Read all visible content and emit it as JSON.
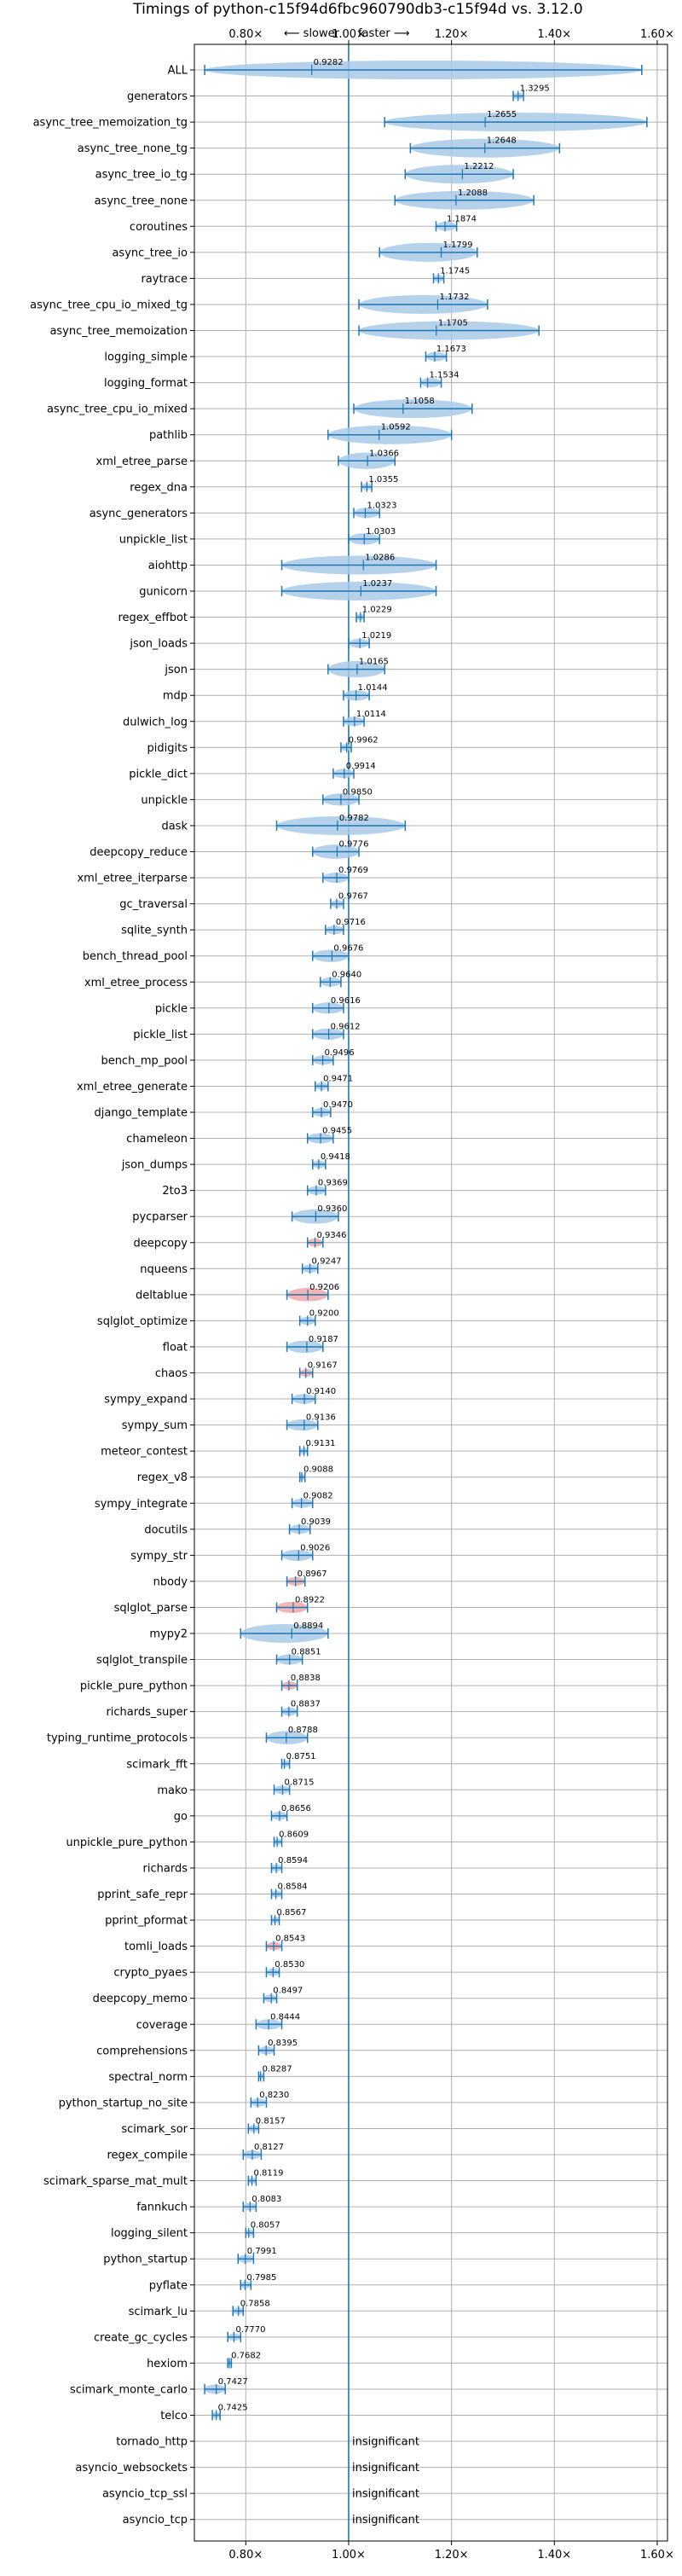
{
  "chart_data": {
    "type": "violin",
    "title": "Timings of python-c15f94d6fbc960790db3-c15f94d vs. 3.12.0",
    "direction_labels": {
      "slower": "⟵ slower",
      "faster": "faster ⟶"
    },
    "xlim": [
      0.7,
      1.62
    ],
    "x_ticks": [
      0.8,
      1.0,
      1.2,
      1.4,
      1.6
    ],
    "x_tick_labels": [
      "0.80×",
      "1.00×",
      "1.20×",
      "1.40×",
      "1.60×"
    ],
    "baseline": 1.0,
    "grid": true,
    "colors": {
      "violin": "#a9c9e6",
      "violin_highlight": "#f0a8a8",
      "line": "#1f77b4",
      "grid": "#b0b0b0"
    },
    "insignificant_label": "insignificant",
    "benchmarks": [
      {
        "name": "ALL",
        "value": "0.9282",
        "mean": 0.9282,
        "lo": 0.72,
        "hi": 1.57
      },
      {
        "name": "generators",
        "value": "1.3295",
        "mean": 1.3295,
        "lo": 1.32,
        "hi": 1.34
      },
      {
        "name": "async_tree_memoization_tg",
        "value": "1.2655",
        "mean": 1.2655,
        "lo": 1.07,
        "hi": 1.58
      },
      {
        "name": "async_tree_none_tg",
        "value": "1.2648",
        "mean": 1.2648,
        "lo": 1.12,
        "hi": 1.41
      },
      {
        "name": "async_tree_io_tg",
        "value": "1.2212",
        "mean": 1.2212,
        "lo": 1.11,
        "hi": 1.32
      },
      {
        "name": "async_tree_none",
        "value": "1.2088",
        "mean": 1.2088,
        "lo": 1.09,
        "hi": 1.36
      },
      {
        "name": "coroutines",
        "value": "1.1874",
        "mean": 1.1874,
        "lo": 1.17,
        "hi": 1.21
      },
      {
        "name": "async_tree_io",
        "value": "1.1799",
        "mean": 1.1799,
        "lo": 1.06,
        "hi": 1.25
      },
      {
        "name": "raytrace",
        "value": "1.1745",
        "mean": 1.1745,
        "lo": 1.165,
        "hi": 1.185
      },
      {
        "name": "async_tree_cpu_io_mixed_tg",
        "value": "1.1732",
        "mean": 1.1732,
        "lo": 1.02,
        "hi": 1.27
      },
      {
        "name": "async_tree_memoization",
        "value": "1.1705",
        "mean": 1.1705,
        "lo": 1.02,
        "hi": 1.37
      },
      {
        "name": "logging_simple",
        "value": "1.1673",
        "mean": 1.1673,
        "lo": 1.15,
        "hi": 1.19
      },
      {
        "name": "logging_format",
        "value": "1.1534",
        "mean": 1.1534,
        "lo": 1.14,
        "hi": 1.18
      },
      {
        "name": "async_tree_cpu_io_mixed",
        "value": "1.1058",
        "mean": 1.1058,
        "lo": 1.01,
        "hi": 1.24
      },
      {
        "name": "pathlib",
        "value": "1.0592",
        "mean": 1.0592,
        "lo": 0.96,
        "hi": 1.2
      },
      {
        "name": "xml_etree_parse",
        "value": "1.0366",
        "mean": 1.0366,
        "lo": 0.98,
        "hi": 1.09
      },
      {
        "name": "regex_dna",
        "value": "1.0355",
        "mean": 1.0355,
        "lo": 1.025,
        "hi": 1.045
      },
      {
        "name": "async_generators",
        "value": "1.0323",
        "mean": 1.0323,
        "lo": 1.01,
        "hi": 1.06
      },
      {
        "name": "unpickle_list",
        "value": "1.0303",
        "mean": 1.0303,
        "lo": 1.0,
        "hi": 1.06
      },
      {
        "name": "aiohttp",
        "value": "1.0286",
        "mean": 1.0286,
        "lo": 0.87,
        "hi": 1.17
      },
      {
        "name": "gunicorn",
        "value": "1.0237",
        "mean": 1.0237,
        "lo": 0.87,
        "hi": 1.17
      },
      {
        "name": "regex_effbot",
        "value": "1.0229",
        "mean": 1.0229,
        "lo": 1.015,
        "hi": 1.03
      },
      {
        "name": "json_loads",
        "value": "1.0219",
        "mean": 1.0219,
        "lo": 1.0,
        "hi": 1.04
      },
      {
        "name": "json",
        "value": "1.0165",
        "mean": 1.0165,
        "lo": 0.96,
        "hi": 1.07
      },
      {
        "name": "mdp",
        "value": "1.0144",
        "mean": 1.0144,
        "lo": 0.99,
        "hi": 1.04
      },
      {
        "name": "dulwich_log",
        "value": "1.0114",
        "mean": 1.0114,
        "lo": 0.99,
        "hi": 1.03
      },
      {
        "name": "pidigits",
        "value": "0.9962",
        "mean": 0.9962,
        "lo": 0.985,
        "hi": 1.005
      },
      {
        "name": "pickle_dict",
        "value": "0.9914",
        "mean": 0.9914,
        "lo": 0.97,
        "hi": 1.01
      },
      {
        "name": "unpickle",
        "value": "0.9850",
        "mean": 0.985,
        "lo": 0.95,
        "hi": 1.02
      },
      {
        "name": "dask",
        "value": "0.9782",
        "mean": 0.9782,
        "lo": 0.86,
        "hi": 1.11
      },
      {
        "name": "deepcopy_reduce",
        "value": "0.9776",
        "mean": 0.9776,
        "lo": 0.93,
        "hi": 1.02
      },
      {
        "name": "xml_etree_iterparse",
        "value": "0.9769",
        "mean": 0.9769,
        "lo": 0.95,
        "hi": 1.0
      },
      {
        "name": "gc_traversal",
        "value": "0.9767",
        "mean": 0.9767,
        "lo": 0.965,
        "hi": 0.99
      },
      {
        "name": "sqlite_synth",
        "value": "0.9716",
        "mean": 0.9716,
        "lo": 0.955,
        "hi": 0.99
      },
      {
        "name": "bench_thread_pool",
        "value": "0.9676",
        "mean": 0.9676,
        "lo": 0.93,
        "hi": 1.0
      },
      {
        "name": "xml_etree_process",
        "value": "0.9640",
        "mean": 0.964,
        "lo": 0.945,
        "hi": 0.985
      },
      {
        "name": "pickle",
        "value": "0.9616",
        "mean": 0.9616,
        "lo": 0.93,
        "hi": 0.99
      },
      {
        "name": "pickle_list",
        "value": "0.9612",
        "mean": 0.9612,
        "lo": 0.93,
        "hi": 0.99
      },
      {
        "name": "bench_mp_pool",
        "value": "0.9496",
        "mean": 0.9496,
        "lo": 0.93,
        "hi": 0.97
      },
      {
        "name": "xml_etree_generate",
        "value": "0.9471",
        "mean": 0.9471,
        "lo": 0.935,
        "hi": 0.96
      },
      {
        "name": "django_template",
        "value": "0.9470",
        "mean": 0.947,
        "lo": 0.93,
        "hi": 0.965
      },
      {
        "name": "chameleon",
        "value": "0.9455",
        "mean": 0.9455,
        "lo": 0.92,
        "hi": 0.97
      },
      {
        "name": "json_dumps",
        "value": "0.9418",
        "mean": 0.9418,
        "lo": 0.93,
        "hi": 0.955
      },
      {
        "name": "2to3",
        "value": "0.9369",
        "mean": 0.9369,
        "lo": 0.92,
        "hi": 0.955
      },
      {
        "name": "pycparser",
        "value": "0.9360",
        "mean": 0.936,
        "lo": 0.89,
        "hi": 0.98
      },
      {
        "name": "deepcopy",
        "value": "0.9346",
        "mean": 0.9346,
        "lo": 0.92,
        "hi": 0.95,
        "highlight": true
      },
      {
        "name": "nqueens",
        "value": "0.9247",
        "mean": 0.9247,
        "lo": 0.91,
        "hi": 0.94
      },
      {
        "name": "deltablue",
        "value": "0.9206",
        "mean": 0.9206,
        "lo": 0.88,
        "hi": 0.96,
        "highlight": true
      },
      {
        "name": "sqlglot_optimize",
        "value": "0.9200",
        "mean": 0.92,
        "lo": 0.905,
        "hi": 0.935
      },
      {
        "name": "float",
        "value": "0.9187",
        "mean": 0.9187,
        "lo": 0.88,
        "hi": 0.95
      },
      {
        "name": "chaos",
        "value": "0.9167",
        "mean": 0.9167,
        "lo": 0.905,
        "hi": 0.93,
        "highlight": true
      },
      {
        "name": "sympy_expand",
        "value": "0.9140",
        "mean": 0.914,
        "lo": 0.89,
        "hi": 0.935
      },
      {
        "name": "sympy_sum",
        "value": "0.9136",
        "mean": 0.9136,
        "lo": 0.88,
        "hi": 0.94
      },
      {
        "name": "meteor_contest",
        "value": "0.9131",
        "mean": 0.9131,
        "lo": 0.905,
        "hi": 0.92
      },
      {
        "name": "regex_v8",
        "value": "0.9088",
        "mean": 0.9088,
        "lo": 0.905,
        "hi": 0.915
      },
      {
        "name": "sympy_integrate",
        "value": "0.9082",
        "mean": 0.9082,
        "lo": 0.89,
        "hi": 0.93
      },
      {
        "name": "docutils",
        "value": "0.9039",
        "mean": 0.9039,
        "lo": 0.885,
        "hi": 0.925
      },
      {
        "name": "sympy_str",
        "value": "0.9026",
        "mean": 0.9026,
        "lo": 0.87,
        "hi": 0.93
      },
      {
        "name": "nbody",
        "value": "0.8967",
        "mean": 0.8967,
        "lo": 0.88,
        "hi": 0.915,
        "highlight": true
      },
      {
        "name": "sqlglot_parse",
        "value": "0.8922",
        "mean": 0.8922,
        "lo": 0.86,
        "hi": 0.92,
        "highlight": true
      },
      {
        "name": "mypy2",
        "value": "0.8894",
        "mean": 0.8894,
        "lo": 0.79,
        "hi": 0.96
      },
      {
        "name": "sqlglot_transpile",
        "value": "0.8851",
        "mean": 0.8851,
        "lo": 0.86,
        "hi": 0.91
      },
      {
        "name": "pickle_pure_python",
        "value": "0.8838",
        "mean": 0.8838,
        "lo": 0.87,
        "hi": 0.9,
        "highlight": true
      },
      {
        "name": "richards_super",
        "value": "0.8837",
        "mean": 0.8837,
        "lo": 0.87,
        "hi": 0.9
      },
      {
        "name": "typing_runtime_protocols",
        "value": "0.8788",
        "mean": 0.8788,
        "lo": 0.84,
        "hi": 0.92
      },
      {
        "name": "scimark_fft",
        "value": "0.8751",
        "mean": 0.8751,
        "lo": 0.87,
        "hi": 0.885
      },
      {
        "name": "mako",
        "value": "0.8715",
        "mean": 0.8715,
        "lo": 0.855,
        "hi": 0.885
      },
      {
        "name": "go",
        "value": "0.8656",
        "mean": 0.8656,
        "lo": 0.85,
        "hi": 0.88
      },
      {
        "name": "unpickle_pure_python",
        "value": "0.8609",
        "mean": 0.8609,
        "lo": 0.855,
        "hi": 0.87
      },
      {
        "name": "richards",
        "value": "0.8594",
        "mean": 0.8594,
        "lo": 0.85,
        "hi": 0.87
      },
      {
        "name": "pprint_safe_repr",
        "value": "0.8584",
        "mean": 0.8584,
        "lo": 0.85,
        "hi": 0.87
      },
      {
        "name": "pprint_pformat",
        "value": "0.8567",
        "mean": 0.8567,
        "lo": 0.85,
        "hi": 0.865
      },
      {
        "name": "tomli_loads",
        "value": "0.8543",
        "mean": 0.8543,
        "lo": 0.84,
        "hi": 0.87,
        "highlight": true
      },
      {
        "name": "crypto_pyaes",
        "value": "0.8530",
        "mean": 0.853,
        "lo": 0.84,
        "hi": 0.865
      },
      {
        "name": "deepcopy_memo",
        "value": "0.8497",
        "mean": 0.8497,
        "lo": 0.835,
        "hi": 0.86
      },
      {
        "name": "coverage",
        "value": "0.8444",
        "mean": 0.8444,
        "lo": 0.82,
        "hi": 0.87
      },
      {
        "name": "comprehensions",
        "value": "0.8395",
        "mean": 0.8395,
        "lo": 0.825,
        "hi": 0.855
      },
      {
        "name": "spectral_norm",
        "value": "0.8287",
        "mean": 0.8287,
        "lo": 0.825,
        "hi": 0.835
      },
      {
        "name": "python_startup_no_site",
        "value": "0.8230",
        "mean": 0.823,
        "lo": 0.81,
        "hi": 0.84
      },
      {
        "name": "scimark_sor",
        "value": "0.8157",
        "mean": 0.8157,
        "lo": 0.805,
        "hi": 0.825
      },
      {
        "name": "regex_compile",
        "value": "0.8127",
        "mean": 0.8127,
        "lo": 0.795,
        "hi": 0.83
      },
      {
        "name": "scimark_sparse_mat_mult",
        "value": "0.8119",
        "mean": 0.8119,
        "lo": 0.805,
        "hi": 0.82
      },
      {
        "name": "fannkuch",
        "value": "0.8083",
        "mean": 0.8083,
        "lo": 0.795,
        "hi": 0.82
      },
      {
        "name": "logging_silent",
        "value": "0.8057",
        "mean": 0.8057,
        "lo": 0.8,
        "hi": 0.815
      },
      {
        "name": "python_startup",
        "value": "0.7991",
        "mean": 0.7991,
        "lo": 0.785,
        "hi": 0.815
      },
      {
        "name": "pyflate",
        "value": "0.7985",
        "mean": 0.7985,
        "lo": 0.79,
        "hi": 0.81
      },
      {
        "name": "scimark_lu",
        "value": "0.7858",
        "mean": 0.7858,
        "lo": 0.775,
        "hi": 0.795
      },
      {
        "name": "create_gc_cycles",
        "value": "0.7770",
        "mean": 0.777,
        "lo": 0.765,
        "hi": 0.79
      },
      {
        "name": "hexiom",
        "value": "0.7682",
        "mean": 0.7682,
        "lo": 0.765,
        "hi": 0.772
      },
      {
        "name": "scimark_monte_carlo",
        "value": "0.7427",
        "mean": 0.7427,
        "lo": 0.72,
        "hi": 0.76
      },
      {
        "name": "telco",
        "value": "0.7425",
        "mean": 0.7425,
        "lo": 0.735,
        "hi": 0.75
      },
      {
        "name": "tornado_http",
        "insignificant": true
      },
      {
        "name": "asyncio_websockets",
        "insignificant": true
      },
      {
        "name": "asyncio_tcp_ssl",
        "insignificant": true
      },
      {
        "name": "asyncio_tcp",
        "insignificant": true
      }
    ]
  }
}
